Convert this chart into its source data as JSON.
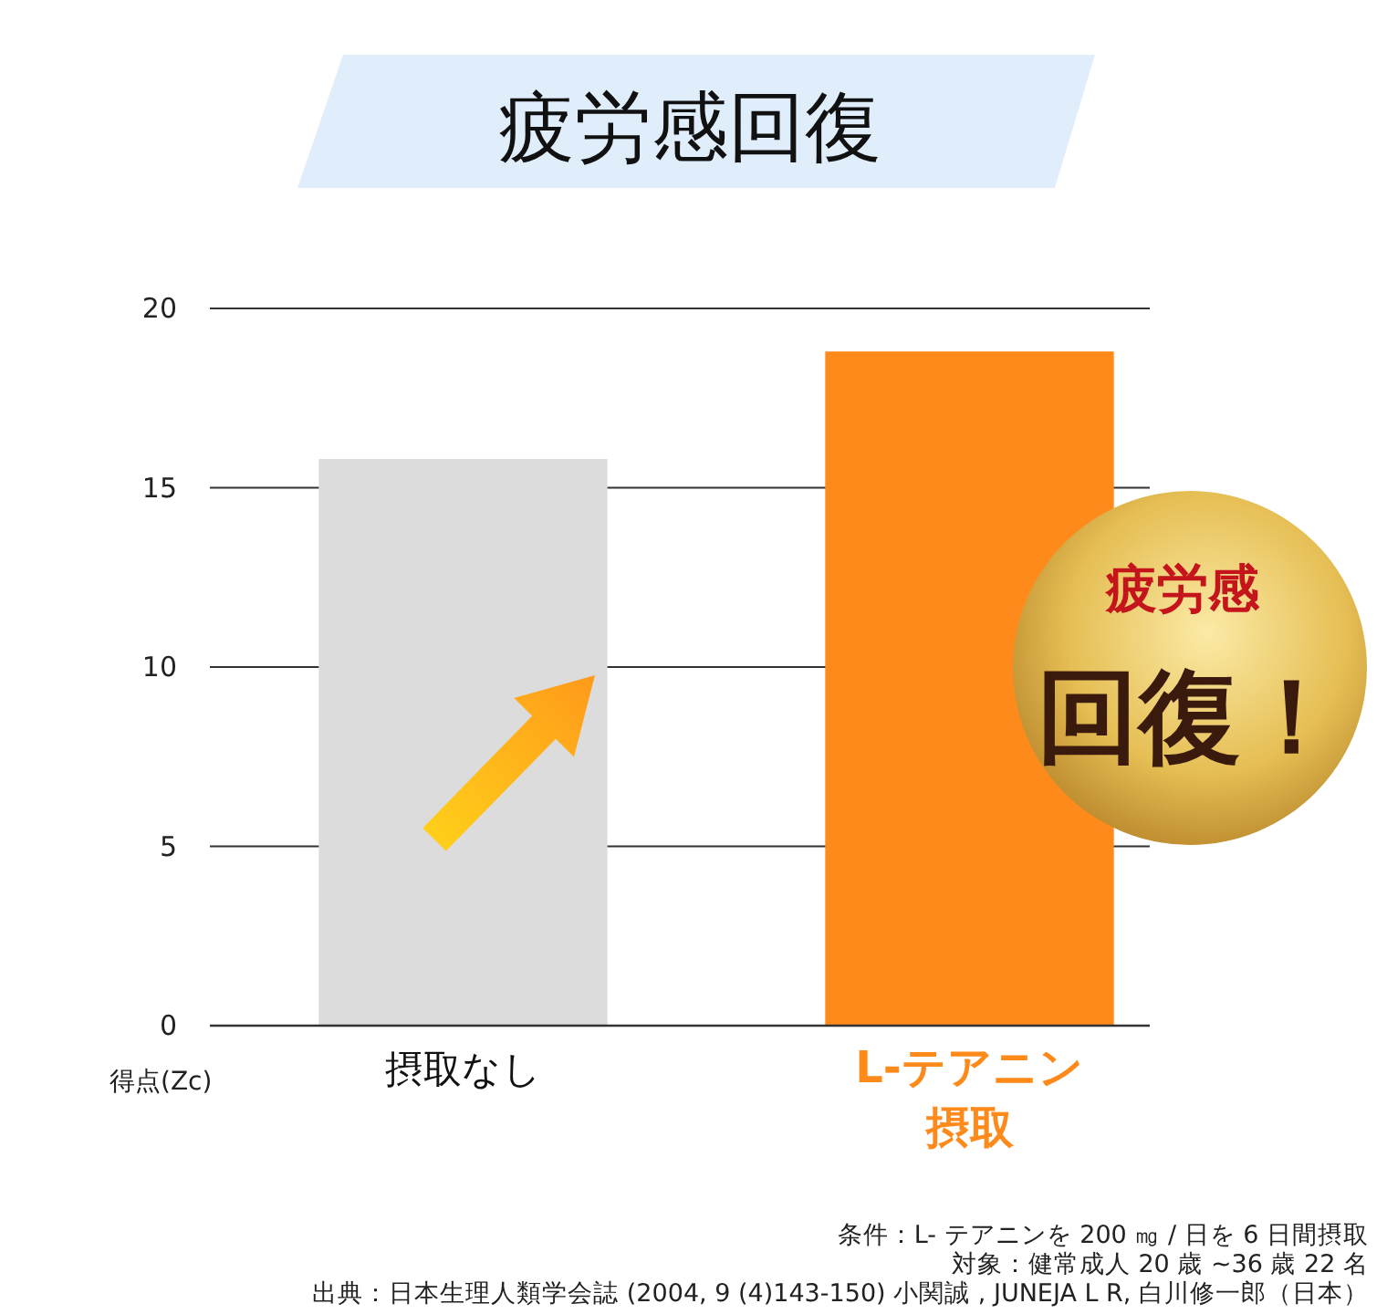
{
  "chart_data": {
    "type": "bar",
    "title": "疲労感回復",
    "ylabel": "得点(Zc)",
    "categories": [
      "摂取なし",
      "L-テアニン摂取"
    ],
    "values": [
      15.8,
      18.8
    ],
    "colors": [
      "#dcdcdc",
      "#ff8a1c"
    ],
    "ylim": [
      0,
      20
    ],
    "yticks": [
      0,
      5,
      10,
      15,
      20
    ],
    "grid": "y",
    "annotations": [
      "疲労感",
      "回復！",
      "条件：L- テアニンを 200 ㎎ / 日を 6 日間摂取",
      "対象：健常成人 20 歳 ~36 歳 22 名",
      "出典：日本生理人類学会誌 (2004, 9 (4)143-150) 小関誠 , JUNEJA L R, 白川修一郎（日本）"
    ]
  }
}
